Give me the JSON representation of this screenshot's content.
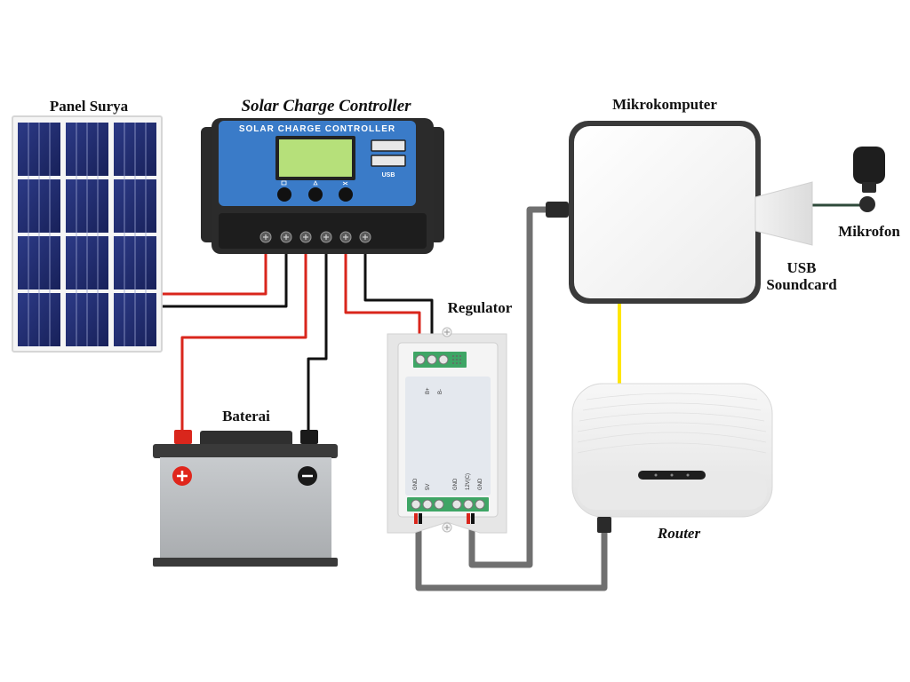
{
  "labels": {
    "solar_panel": "Panel Surya",
    "charge_controller": "Solar Charge Controller",
    "battery": "Baterai",
    "regulator": "Regulator",
    "microcomputer": "Mikrokomputer",
    "microphone": "Mikrofon",
    "usb_soundcard_line1": "USB",
    "usb_soundcard_line2": "Soundcard",
    "router": "Router"
  },
  "controller": {
    "face_title": "SOLAR CHARGE CONTROLLER",
    "usb_label": "USB"
  },
  "regulator_pins": {
    "input_plus": "B+",
    "input_minus": "B-",
    "gnd_1": "GND",
    "out_5v": "5V",
    "gnd_2": "GND",
    "out_12v": "12V(C)",
    "gnd_3": "GND"
  },
  "colors": {
    "wire_positive": "#d9261c",
    "wire_negative": "#111111",
    "wire_data": "#707070",
    "ethernet": "#ffe600",
    "panel_cell": "#1f2a6b",
    "controller_face": "#3a7bc8",
    "lcd": "#b6e07a",
    "battery_body": "#b9bcbf"
  }
}
